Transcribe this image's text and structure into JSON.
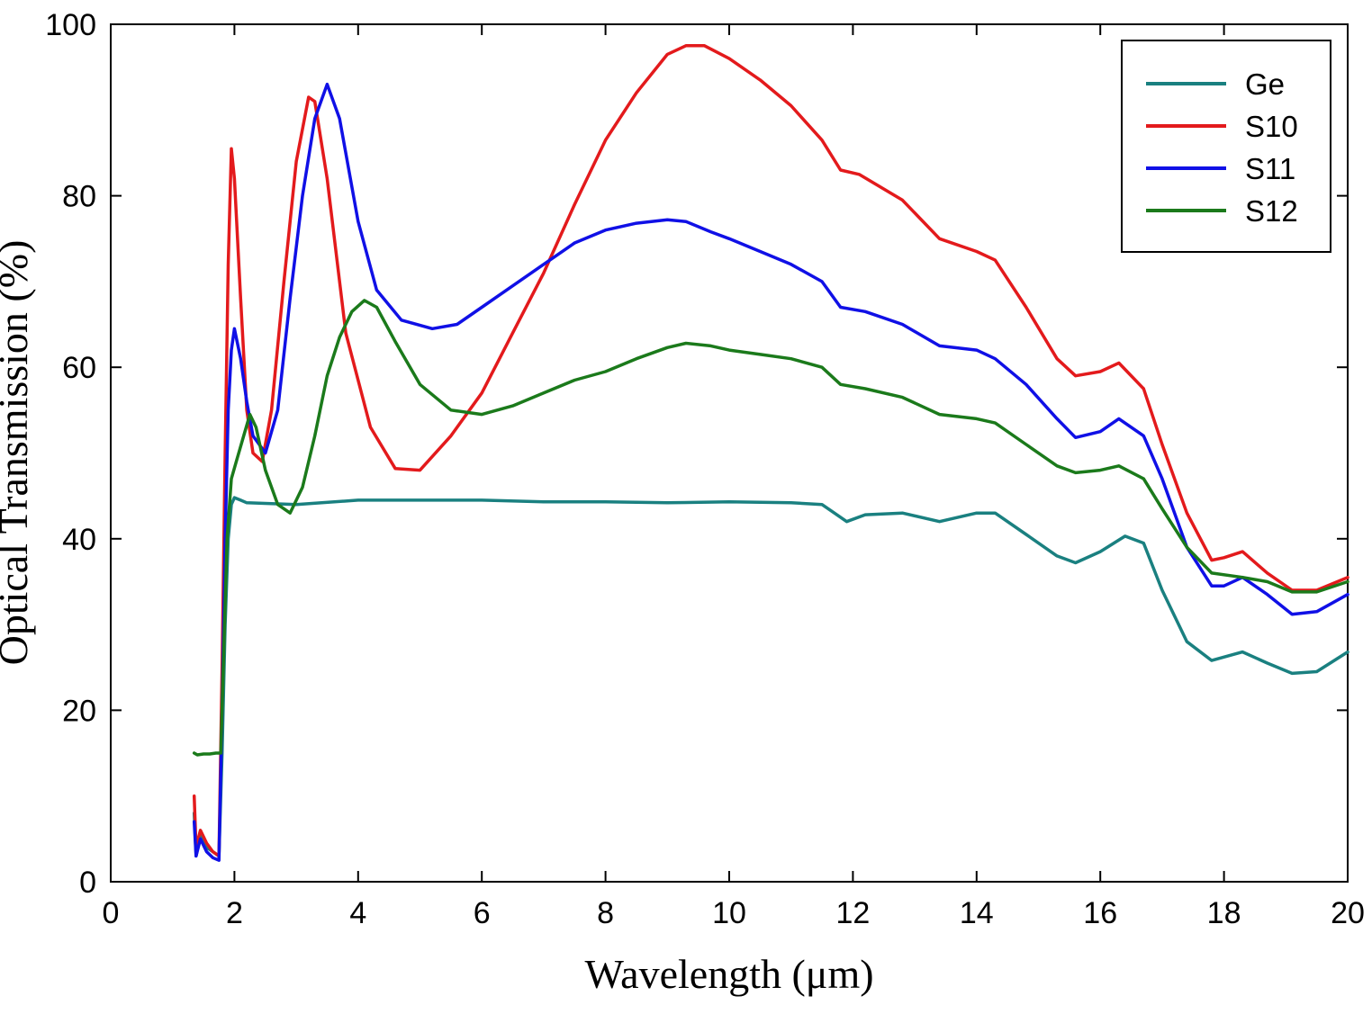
{
  "chart_data": {
    "type": "line",
    "title": "",
    "xlabel": "Wavelength (μm)",
    "ylabel": "Optical Transmission (%)",
    "xlim": [
      0,
      20
    ],
    "ylim": [
      0,
      100
    ],
    "xticks": [
      "0",
      "2",
      "4",
      "6",
      "8",
      "10",
      "12",
      "14",
      "16",
      "18",
      "20"
    ],
    "yticks": [
      "0",
      "20",
      "40",
      "60",
      "80",
      "100"
    ],
    "grid": false,
    "legend_position": "top-right",
    "series": [
      {
        "name": "Ge",
        "color": "#1a8080",
        "points": [
          [
            1.35,
            8
          ],
          [
            1.38,
            3
          ],
          [
            1.45,
            5.5
          ],
          [
            1.55,
            4
          ],
          [
            1.65,
            3.5
          ],
          [
            1.75,
            3
          ],
          [
            1.8,
            15
          ],
          [
            1.85,
            30
          ],
          [
            1.9,
            40
          ],
          [
            1.95,
            44
          ],
          [
            2.0,
            44.8
          ],
          [
            2.1,
            44.5
          ],
          [
            2.2,
            44.2
          ],
          [
            3,
            44
          ],
          [
            4,
            44.5
          ],
          [
            5,
            44.5
          ],
          [
            6,
            44.5
          ],
          [
            7,
            44.3
          ],
          [
            8,
            44.3
          ],
          [
            9,
            44.2
          ],
          [
            10,
            44.3
          ],
          [
            11,
            44.2
          ],
          [
            11.5,
            44
          ],
          [
            11.7,
            43
          ],
          [
            11.9,
            42
          ],
          [
            12.2,
            42.8
          ],
          [
            12.8,
            43
          ],
          [
            13.4,
            42
          ],
          [
            14,
            43
          ],
          [
            14.3,
            43
          ],
          [
            14.8,
            40.5
          ],
          [
            15.3,
            38
          ],
          [
            15.6,
            37.2
          ],
          [
            16,
            38.5
          ],
          [
            16.4,
            40.3
          ],
          [
            16.7,
            39.5
          ],
          [
            17,
            34
          ],
          [
            17.4,
            28
          ],
          [
            17.8,
            25.8
          ],
          [
            18.3,
            26.8
          ],
          [
            18.7,
            25.5
          ],
          [
            19.1,
            24.3
          ],
          [
            19.5,
            24.5
          ],
          [
            20,
            26.8
          ]
        ]
      },
      {
        "name": "S10",
        "color": "#e31a1c",
        "points": [
          [
            1.35,
            10
          ],
          [
            1.38,
            4
          ],
          [
            1.45,
            6
          ],
          [
            1.55,
            4.5
          ],
          [
            1.65,
            3.5
          ],
          [
            1.75,
            3
          ],
          [
            1.8,
            25
          ],
          [
            1.85,
            50
          ],
          [
            1.9,
            72
          ],
          [
            1.95,
            85.5
          ],
          [
            2.0,
            82
          ],
          [
            2.1,
            68
          ],
          [
            2.2,
            55
          ],
          [
            2.3,
            50
          ],
          [
            2.45,
            49
          ],
          [
            2.6,
            55
          ],
          [
            2.8,
            70
          ],
          [
            3.0,
            84
          ],
          [
            3.2,
            91.5
          ],
          [
            3.3,
            91
          ],
          [
            3.5,
            82
          ],
          [
            3.8,
            64
          ],
          [
            4.2,
            53
          ],
          [
            4.6,
            48.2
          ],
          [
            5.0,
            48
          ],
          [
            5.5,
            52
          ],
          [
            6.0,
            57
          ],
          [
            6.5,
            64
          ],
          [
            7.0,
            71
          ],
          [
            7.5,
            79
          ],
          [
            8.0,
            86.5
          ],
          [
            8.5,
            92
          ],
          [
            9.0,
            96.5
          ],
          [
            9.3,
            97.5
          ],
          [
            9.6,
            97.5
          ],
          [
            10,
            96
          ],
          [
            10.5,
            93.5
          ],
          [
            11,
            90.5
          ],
          [
            11.5,
            86.5
          ],
          [
            11.8,
            83
          ],
          [
            12.1,
            82.5
          ],
          [
            12.8,
            79.5
          ],
          [
            13.4,
            75
          ],
          [
            14,
            73.5
          ],
          [
            14.3,
            72.5
          ],
          [
            14.8,
            67
          ],
          [
            15.3,
            61
          ],
          [
            15.6,
            59
          ],
          [
            16.0,
            59.5
          ],
          [
            16.3,
            60.5
          ],
          [
            16.7,
            57.5
          ],
          [
            17.0,
            51
          ],
          [
            17.4,
            43
          ],
          [
            17.8,
            37.5
          ],
          [
            18.0,
            37.8
          ],
          [
            18.3,
            38.5
          ],
          [
            18.7,
            36
          ],
          [
            19.1,
            34
          ],
          [
            19.5,
            34
          ],
          [
            20,
            35.5
          ]
        ]
      },
      {
        "name": "S11",
        "color": "#1010e6",
        "points": [
          [
            1.35,
            7
          ],
          [
            1.38,
            3
          ],
          [
            1.45,
            5
          ],
          [
            1.55,
            3.5
          ],
          [
            1.65,
            2.8
          ],
          [
            1.75,
            2.5
          ],
          [
            1.8,
            20
          ],
          [
            1.85,
            40
          ],
          [
            1.9,
            55
          ],
          [
            1.95,
            62
          ],
          [
            2.0,
            64.5
          ],
          [
            2.1,
            61
          ],
          [
            2.2,
            56
          ],
          [
            2.3,
            52
          ],
          [
            2.5,
            50
          ],
          [
            2.7,
            55
          ],
          [
            2.9,
            68
          ],
          [
            3.1,
            80
          ],
          [
            3.3,
            89
          ],
          [
            3.5,
            93
          ],
          [
            3.7,
            89
          ],
          [
            4.0,
            77
          ],
          [
            4.3,
            69
          ],
          [
            4.7,
            65.5
          ],
          [
            5.2,
            64.5
          ],
          [
            5.6,
            65
          ],
          [
            6.0,
            67
          ],
          [
            6.5,
            69.5
          ],
          [
            7.0,
            72
          ],
          [
            7.5,
            74.5
          ],
          [
            8.0,
            76
          ],
          [
            8.5,
            76.8
          ],
          [
            9.0,
            77.2
          ],
          [
            9.3,
            77
          ],
          [
            9.7,
            75.8
          ],
          [
            10,
            75
          ],
          [
            10.5,
            73.5
          ],
          [
            11,
            72
          ],
          [
            11.5,
            70
          ],
          [
            11.8,
            67
          ],
          [
            12.2,
            66.5
          ],
          [
            12.8,
            65
          ],
          [
            13.4,
            62.5
          ],
          [
            14,
            62
          ],
          [
            14.3,
            61
          ],
          [
            14.8,
            58
          ],
          [
            15.3,
            54
          ],
          [
            15.6,
            51.8
          ],
          [
            16,
            52.5
          ],
          [
            16.3,
            54
          ],
          [
            16.7,
            52
          ],
          [
            17,
            47
          ],
          [
            17.4,
            39
          ],
          [
            17.8,
            34.5
          ],
          [
            18.0,
            34.5
          ],
          [
            18.3,
            35.5
          ],
          [
            18.7,
            33.5
          ],
          [
            19.1,
            31.2
          ],
          [
            19.5,
            31.5
          ],
          [
            20,
            33.5
          ]
        ]
      },
      {
        "name": "S12",
        "color": "#1b7a1b",
        "points": [
          [
            1.35,
            15
          ],
          [
            1.4,
            14.8
          ],
          [
            1.5,
            14.9
          ],
          [
            1.6,
            14.9
          ],
          [
            1.7,
            15
          ],
          [
            1.78,
            15
          ],
          [
            1.82,
            25
          ],
          [
            1.88,
            40
          ],
          [
            1.95,
            47
          ],
          [
            2.05,
            49.5
          ],
          [
            2.15,
            52
          ],
          [
            2.25,
            54.5
          ],
          [
            2.35,
            53
          ],
          [
            2.5,
            48
          ],
          [
            2.7,
            44
          ],
          [
            2.9,
            43
          ],
          [
            3.1,
            46
          ],
          [
            3.3,
            52
          ],
          [
            3.5,
            59
          ],
          [
            3.7,
            63.5
          ],
          [
            3.9,
            66.5
          ],
          [
            4.1,
            67.8
          ],
          [
            4.3,
            67
          ],
          [
            4.6,
            63
          ],
          [
            5.0,
            58
          ],
          [
            5.5,
            55
          ],
          [
            6.0,
            54.5
          ],
          [
            6.5,
            55.5
          ],
          [
            7.0,
            57
          ],
          [
            7.5,
            58.5
          ],
          [
            8.0,
            59.5
          ],
          [
            8.5,
            61
          ],
          [
            9.0,
            62.3
          ],
          [
            9.3,
            62.8
          ],
          [
            9.7,
            62.5
          ],
          [
            10,
            62
          ],
          [
            10.5,
            61.5
          ],
          [
            11,
            61
          ],
          [
            11.5,
            60
          ],
          [
            11.8,
            58
          ],
          [
            12.2,
            57.5
          ],
          [
            12.8,
            56.5
          ],
          [
            13.4,
            54.5
          ],
          [
            14,
            54
          ],
          [
            14.3,
            53.5
          ],
          [
            14.8,
            51
          ],
          [
            15.3,
            48.5
          ],
          [
            15.6,
            47.7
          ],
          [
            16,
            48
          ],
          [
            16.3,
            48.5
          ],
          [
            16.7,
            47
          ],
          [
            17,
            43.5
          ],
          [
            17.4,
            39
          ],
          [
            17.8,
            36
          ],
          [
            18.3,
            35.5
          ],
          [
            18.7,
            35
          ],
          [
            19.1,
            33.8
          ],
          [
            19.5,
            33.8
          ],
          [
            20,
            35
          ]
        ]
      }
    ]
  }
}
